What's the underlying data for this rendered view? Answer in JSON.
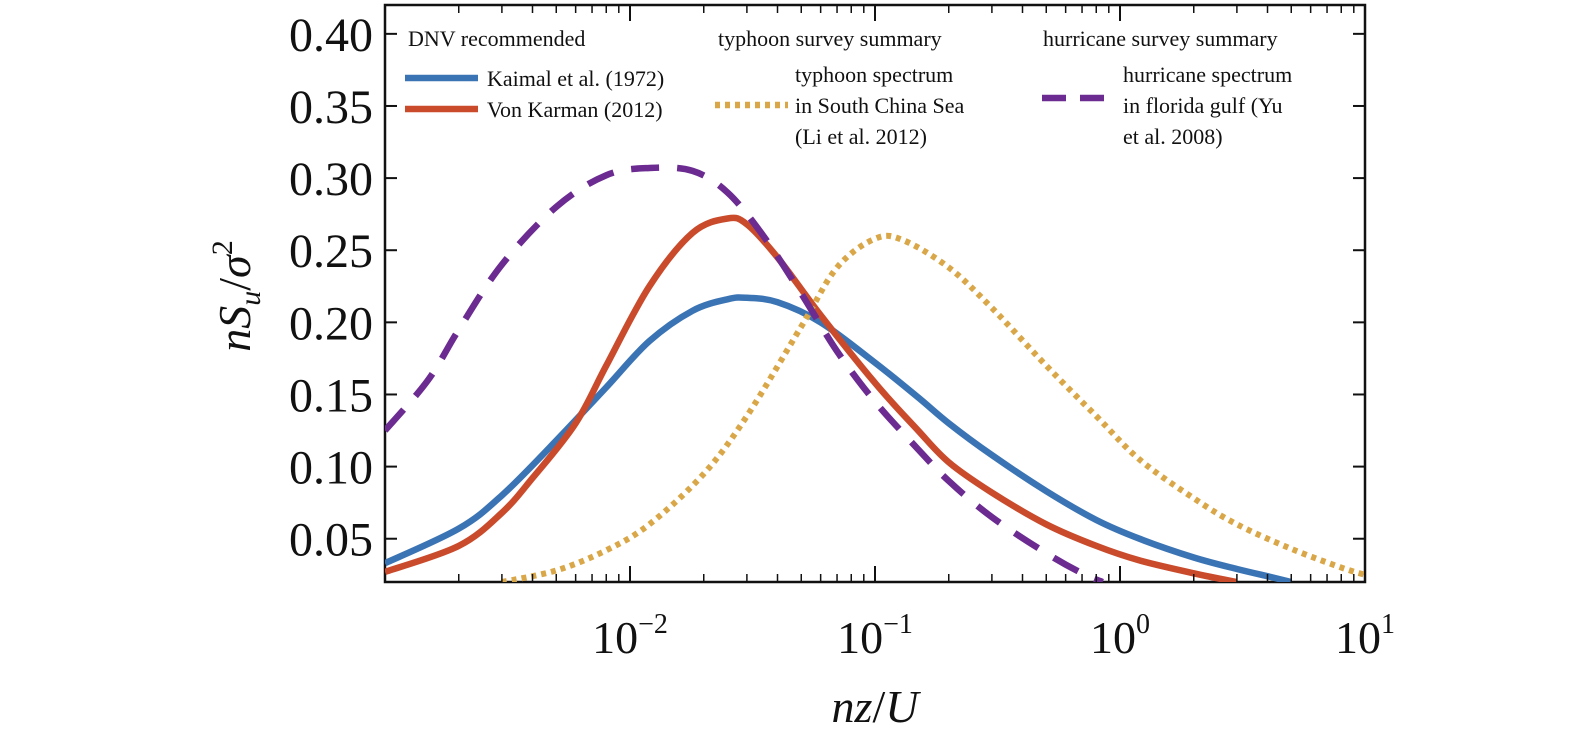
{
  "chart_data": {
    "type": "line",
    "title": "",
    "xlabel": {
      "main": "nz",
      "slash": "/",
      "den": "U"
    },
    "ylabel": {
      "n": "n",
      "S": "S",
      "sub": "u",
      "slash": "/",
      "sigma": "σ",
      "sup": "2"
    },
    "xscale": "log",
    "xlim": [
      0.001,
      10
    ],
    "ylim": [
      0.02,
      0.42
    ],
    "grid": false,
    "legend_position": "top",
    "y_ticks": [
      {
        "value": 0.05,
        "label": "0.05"
      },
      {
        "value": 0.1,
        "label": "0.10"
      },
      {
        "value": 0.15,
        "label": "0.15"
      },
      {
        "value": 0.2,
        "label": "0.20"
      },
      {
        "value": 0.25,
        "label": "0.25"
      },
      {
        "value": 0.3,
        "label": "0.30"
      },
      {
        "value": 0.35,
        "label": "0.35"
      },
      {
        "value": 0.4,
        "label": "0.40"
      }
    ],
    "x_ticks": [
      {
        "value": 0.01,
        "base": "10",
        "exp": "−2"
      },
      {
        "value": 0.1,
        "base": "10",
        "exp": "−1"
      },
      {
        "value": 1,
        "base": "10",
        "exp": "0"
      },
      {
        "value": 10,
        "base": "10",
        "exp": "1"
      }
    ],
    "legend_groups": [
      {
        "title": "DNV recommended"
      },
      {
        "title": "typhoon survey summary"
      },
      {
        "title": "hurricane survey summary"
      }
    ],
    "series": [
      {
        "name": "Kaimal et al. (1972)",
        "legend_lines": [
          "Kaimal et al. (1972)"
        ],
        "color": "#3b74b4",
        "style": "solid",
        "x": [
          0.001,
          0.002,
          0.003,
          0.005,
          0.008,
          0.012,
          0.018,
          0.025,
          0.03,
          0.04,
          0.06,
          0.1,
          0.15,
          0.2,
          0.3,
          0.5,
          0.8,
          1.2,
          2,
          3,
          4,
          5
        ],
        "y": [
          0.033,
          0.057,
          0.08,
          0.118,
          0.155,
          0.187,
          0.208,
          0.216,
          0.217,
          0.214,
          0.2,
          0.172,
          0.148,
          0.13,
          0.108,
          0.083,
          0.063,
          0.05,
          0.037,
          0.029,
          0.024,
          0.02
        ]
      },
      {
        "name": "Von Karman (2012)",
        "legend_lines": [
          "Von Karman (2012)"
        ],
        "color": "#c94b2c",
        "style": "solid",
        "x": [
          0.001,
          0.002,
          0.003,
          0.004,
          0.006,
          0.008,
          0.012,
          0.018,
          0.025,
          0.03,
          0.04,
          0.06,
          0.1,
          0.15,
          0.2,
          0.3,
          0.5,
          0.8,
          1.2,
          2,
          3
        ],
        "y": [
          0.027,
          0.045,
          0.068,
          0.092,
          0.13,
          0.17,
          0.225,
          0.262,
          0.272,
          0.268,
          0.245,
          0.205,
          0.158,
          0.125,
          0.103,
          0.082,
          0.06,
          0.045,
          0.035,
          0.026,
          0.02
        ]
      },
      {
        "name": "typhoon spectrum in South China Sea (Li et al. 2012)",
        "legend_lines": [
          "typhoon spectrum",
          "in South China Sea",
          "(Li et al. 2012)"
        ],
        "color": "#d9a748",
        "style": "dotted",
        "x": [
          0.003,
          0.005,
          0.008,
          0.012,
          0.02,
          0.03,
          0.05,
          0.07,
          0.1,
          0.13,
          0.2,
          0.3,
          0.5,
          0.8,
          1.2,
          2,
          3,
          5,
          8,
          10
        ],
        "y": [
          0.02,
          0.028,
          0.042,
          0.06,
          0.095,
          0.135,
          0.197,
          0.238,
          0.258,
          0.257,
          0.238,
          0.21,
          0.17,
          0.135,
          0.105,
          0.078,
          0.06,
          0.043,
          0.03,
          0.025
        ]
      },
      {
        "name": "hurricane spectrum in florida gulf (Yu et al. 2008)",
        "legend_lines": [
          "hurricane spectrum",
          "in florida gulf (Yu",
          "et al. 2008)"
        ],
        "color": "#6b2b91",
        "style": "dashed",
        "x": [
          0.001,
          0.0015,
          0.002,
          0.003,
          0.005,
          0.008,
          0.012,
          0.018,
          0.025,
          0.035,
          0.05,
          0.07,
          0.1,
          0.15,
          0.2,
          0.3,
          0.5,
          0.7,
          0.85
        ],
        "y": [
          0.125,
          0.16,
          0.195,
          0.24,
          0.28,
          0.302,
          0.307,
          0.305,
          0.29,
          0.26,
          0.22,
          0.18,
          0.145,
          0.112,
          0.09,
          0.065,
          0.04,
          0.026,
          0.02
        ]
      }
    ]
  }
}
